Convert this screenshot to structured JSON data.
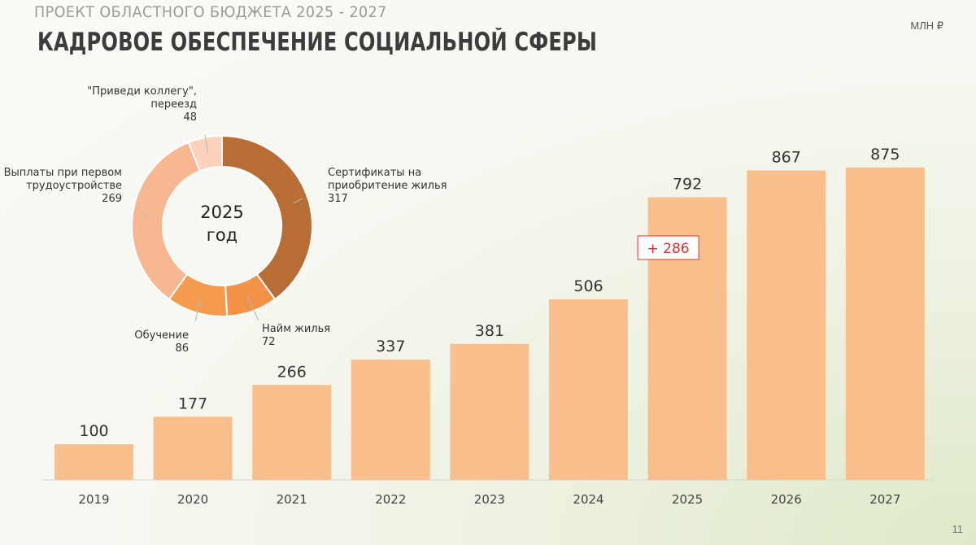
{
  "header": {
    "supertitle": "ПРОЕКТ ОБЛАСТНОГО БЮДЖЕТА 2025 - 2027",
    "title": "КАДРОВОЕ ОБЕСПЕЧЕНИЕ СОЦИАЛЬНОЙ СФЕРЫ",
    "units": "МЛН ₽",
    "page": "11"
  },
  "colors": {
    "bar": "#f9c08e",
    "delta_border": "#e03030",
    "donut": [
      "#b86d35",
      "#f49348",
      "#f49b4e",
      "#f7b891",
      "#fbd3bd"
    ]
  },
  "chart_data": [
    {
      "type": "bar",
      "categories": [
        "2019",
        "2020",
        "2021",
        "2022",
        "2023",
        "2024",
        "2025",
        "2026",
        "2027"
      ],
      "values": [
        100,
        177,
        266,
        337,
        381,
        506,
        792,
        867,
        875
      ],
      "annotation": {
        "category": "2025",
        "text": "+ 286"
      },
      "grid": false
    },
    {
      "type": "pie",
      "center_label": [
        "2025",
        "год"
      ],
      "slices": [
        {
          "label": [
            "Сертификаты на",
            "приобритение жилья"
          ],
          "value": 317
        },
        {
          "label": [
            "Найм жилья"
          ],
          "value": 72
        },
        {
          "label": [
            "Обучение"
          ],
          "value": 86
        },
        {
          "label": [
            "Выплаты при первом",
            "трудоустройстве"
          ],
          "value": 269
        },
        {
          "label": [
            "\"Приведи коллегу\",",
            "переезд"
          ],
          "value": 48
        }
      ]
    }
  ]
}
